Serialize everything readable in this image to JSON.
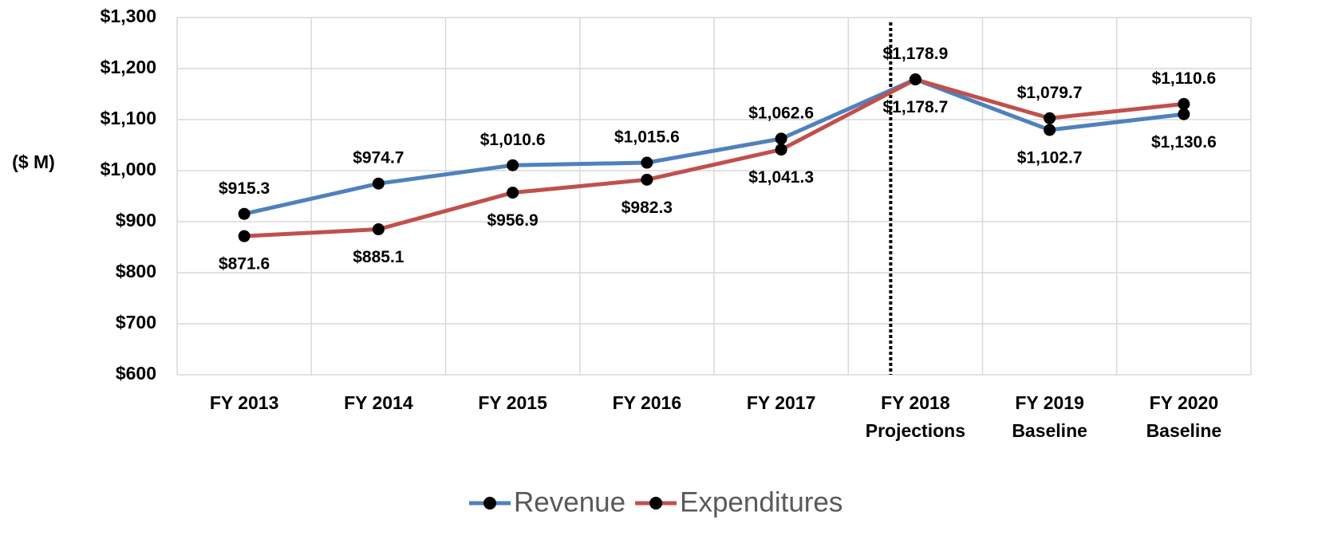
{
  "chart_data": {
    "type": "line",
    "y_axis_label": "($ M)",
    "categories": [
      [
        "FY 2013"
      ],
      [
        "FY 2014"
      ],
      [
        "FY 2015"
      ],
      [
        "FY 2016"
      ],
      [
        "FY 2017"
      ],
      [
        "FY 2018",
        "Projections"
      ],
      [
        "FY 2019",
        "Baseline"
      ],
      [
        "FY 2020",
        "Baseline"
      ]
    ],
    "series": [
      {
        "name": "Revenue",
        "color": "#4f81bd",
        "values": [
          915.3,
          974.7,
          1010.6,
          1015.6,
          1062.6,
          1178.9,
          1079.7,
          1110.6
        ],
        "value_labels": [
          "$915.3",
          "$974.7",
          "$1,010.6",
          "$1,015.6",
          "$1,062.6",
          "$1,178.9",
          "$1,079.7",
          "$1,110.6"
        ]
      },
      {
        "name": "Expenditures",
        "color": "#c0504d",
        "values": [
          871.6,
          885.1,
          956.9,
          982.3,
          1041.3,
          1178.7,
          1102.7,
          1130.6
        ],
        "value_labels": [
          "$871.6",
          "$885.1",
          "$956.9",
          "$982.3",
          "$1,041.3",
          "$1,178.7",
          "$1,102.7",
          "$1,130.6"
        ]
      }
    ],
    "ylim": [
      600,
      1300
    ],
    "yticks": [
      {
        "value": 600,
        "label": "$600"
      },
      {
        "value": 700,
        "label": "$700"
      },
      {
        "value": 800,
        "label": "$800"
      },
      {
        "value": 900,
        "label": "$900"
      },
      {
        "value": 1000,
        "label": "$1,000"
      },
      {
        "value": 1100,
        "label": "$1,100"
      },
      {
        "value": 1200,
        "label": "$1,200"
      },
      {
        "value": 1300,
        "label": "$1,300"
      }
    ],
    "grid": true,
    "legend": "bottom"
  }
}
